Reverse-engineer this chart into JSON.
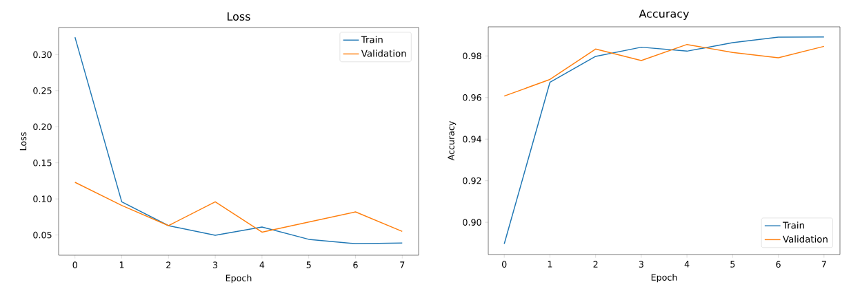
{
  "chart_data": [
    {
      "type": "line",
      "title": "Loss",
      "xlabel": "Epoch",
      "ylabel": "Loss",
      "x": [
        0,
        1,
        2,
        3,
        4,
        5,
        6,
        7
      ],
      "series": [
        {
          "name": "Train",
          "color": "#1f77b4",
          "values": [
            0.324,
            0.096,
            0.063,
            0.0497,
            0.061,
            0.044,
            0.038,
            0.039
          ]
        },
        {
          "name": "Validation",
          "color": "#ff7f0e",
          "values": [
            0.123,
            0.091,
            0.063,
            0.096,
            0.054,
            0.068,
            0.082,
            0.055
          ]
        }
      ],
      "xlim": [
        -0.35,
        7.35
      ],
      "ylim": [
        0.022,
        0.3375
      ],
      "xticks": [
        0,
        1,
        2,
        3,
        4,
        5,
        6,
        7
      ],
      "yticks": [
        {
          "value": 0.05,
          "label": "0.05"
        },
        {
          "value": 0.1,
          "label": "0.10"
        },
        {
          "value": 0.15,
          "label": "0.15"
        },
        {
          "value": 0.2,
          "label": "0.20"
        },
        {
          "value": 0.25,
          "label": "0.25"
        },
        {
          "value": 0.3,
          "label": "0.30"
        }
      ],
      "legend": "top right"
    },
    {
      "type": "line",
      "title": "Accuracy",
      "xlabel": "Epoch",
      "ylabel": "Accuracy",
      "x": [
        0,
        1,
        2,
        3,
        4,
        5,
        6,
        7
      ],
      "series": [
        {
          "name": "Train",
          "color": "#1f77b4",
          "values": [
            0.8896,
            0.9673,
            0.9798,
            0.9842,
            0.9823,
            0.9864,
            0.989,
            0.9891
          ]
        },
        {
          "name": "Validation",
          "color": "#ff7f0e",
          "values": [
            0.9607,
            0.9687,
            0.9833,
            0.9778,
            0.9855,
            0.9817,
            0.9791,
            0.9846
          ]
        }
      ],
      "xlim": [
        -0.35,
        7.35
      ],
      "ylim": [
        0.8845,
        0.994
      ],
      "xticks": [
        0,
        1,
        2,
        3,
        4,
        5,
        6,
        7
      ],
      "yticks": [
        {
          "value": 0.9,
          "label": "0.90"
        },
        {
          "value": 0.92,
          "label": "0.92"
        },
        {
          "value": 0.94,
          "label": "0.94"
        },
        {
          "value": 0.96,
          "label": "0.96"
        },
        {
          "value": 0.98,
          "label": "0.98"
        }
      ],
      "legend": "bottom right"
    }
  ]
}
